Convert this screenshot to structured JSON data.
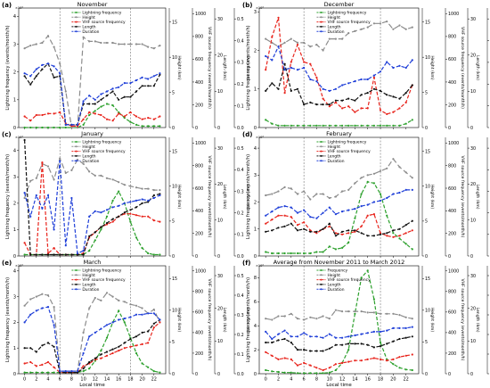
{
  "figure": {
    "shared_ylabels": [
      "Lightning frequency (events/month/h)",
      "Height (km)",
      "VHF source frequency (events/month/h)",
      "Length (km)",
      "Duration (s)"
    ],
    "y1_exponent": "×10³",
    "y1_ticks": [
      0,
      1,
      2,
      3,
      4
    ],
    "y1_ticks_f": [
      0,
      2,
      4,
      6,
      8
    ],
    "height_ticks": [
      0,
      5,
      10,
      15
    ],
    "vhf_ticks": [
      0,
      200,
      400,
      600,
      800,
      1000
    ],
    "length_ticks": [
      0,
      10,
      20,
      30
    ],
    "duration_ticks": [
      0.0,
      0.1,
      0.2,
      0.3,
      0.4,
      0.5
    ],
    "x_ticks": [
      0,
      2,
      4,
      6,
      8,
      10,
      12,
      14,
      16,
      18,
      20,
      22
    ],
    "xlabel": "Local time",
    "legend_entries": [
      "Lightning frequency",
      "Height",
      "VHF source frequency",
      "Length",
      "Duration"
    ],
    "colors": {
      "lightning": "#2ca02c",
      "height": "#8c8c8c",
      "vhf": "#e8241c",
      "length": "#111111",
      "duration": "#1f3fd8"
    }
  },
  "chart_data": [
    {
      "type": "line",
      "panel": "(a)",
      "title": "November",
      "x": [
        0,
        1,
        2,
        3,
        4,
        5,
        6,
        7,
        8,
        9,
        10,
        11,
        12,
        13,
        14,
        15,
        16,
        17,
        18,
        19,
        20,
        21,
        22,
        23
      ],
      "ylim": [
        0,
        4.3
      ],
      "series": [
        {
          "name": "Lightning frequency",
          "values": [
            0,
            0,
            0,
            0,
            0,
            0,
            0,
            0,
            0,
            0,
            0.1,
            0.45,
            0.6,
            0.75,
            0.85,
            0.8,
            0.55,
            0.35,
            0.2,
            0.1,
            0.05,
            0.05,
            0.05,
            0.05
          ]
        },
        {
          "name": "Height",
          "values": [
            2.85,
            2.95,
            3.0,
            3.05,
            3.3,
            2.9,
            2.3,
            1.3,
            0,
            0,
            3.25,
            3.1,
            3.1,
            3.05,
            3.05,
            3.05,
            3.0,
            3.0,
            3.0,
            3.0,
            3.0,
            2.9,
            2.85,
            2.95
          ]
        },
        {
          "name": "VHF source frequency",
          "values": [
            0.4,
            0.25,
            0.45,
            0.45,
            0.5,
            0.5,
            0.55,
            0.15,
            0.05,
            0.05,
            0.3,
            0.55,
            0.5,
            0.45,
            0.3,
            0.25,
            0.5,
            0.4,
            0.55,
            0.4,
            0.3,
            0.35,
            0.3,
            0.4
          ]
        },
        {
          "name": "Length",
          "values": [
            1.85,
            1.55,
            1.85,
            2.1,
            2.3,
            1.8,
            1.85,
            0.1,
            0.1,
            0.1,
            0.85,
            0.85,
            0.85,
            1.0,
            1.15,
            1.3,
            1.0,
            1.1,
            1.1,
            1.3,
            1.5,
            1.5,
            1.5,
            1.9
          ]
        },
        {
          "name": "Duration",
          "values": [
            1.95,
            1.85,
            2.1,
            2.25,
            2.3,
            2.2,
            1.95,
            0.1,
            0.1,
            0.1,
            0.95,
            1.15,
            1.0,
            1.2,
            1.3,
            1.4,
            1.45,
            1.6,
            1.6,
            1.7,
            1.8,
            1.75,
            1.85,
            1.95
          ]
        }
      ]
    },
    {
      "type": "line",
      "panel": "(b)",
      "title": "December",
      "x": [
        0,
        1,
        2,
        3,
        4,
        5,
        6,
        7,
        8,
        9,
        10,
        11,
        12,
        13,
        14,
        15,
        16,
        17,
        18,
        19,
        20,
        21,
        22,
        23
      ],
      "ylim": [
        0,
        3.1
      ],
      "series": [
        {
          "name": "Lightning frequency",
          "values": [
            0.2,
            0.1,
            0.05,
            0.05,
            0.05,
            0.05,
            0.05,
            0.05,
            0.05,
            0.05,
            0.05,
            0.05,
            0.05,
            0.05,
            0.05,
            0.05,
            0.05,
            0.05,
            0.05,
            0.05,
            0.05,
            0.05,
            0.1,
            0.2
          ]
        },
        {
          "name": "Height",
          "values": [
            2.3,
            2.2,
            2.1,
            2.2,
            2.3,
            2.2,
            2.2,
            2.1,
            2.15,
            2.0,
            2.3,
            2.3,
            2.3,
            2.45,
            2.5,
            2.55,
            2.6,
            2.7,
            2.7,
            2.75,
            2.55,
            2.65,
            2.55,
            2.6
          ]
        },
        {
          "name": "VHF source frequency",
          "values": [
            1.5,
            2.35,
            2.85,
            0.9,
            1.7,
            2.15,
            1.7,
            1.65,
            1.3,
            0.75,
            0.55,
            0.65,
            0.5,
            0.55,
            0.4,
            0.5,
            0.5,
            1.3,
            0.45,
            0.35,
            0.4,
            0.5,
            0.65,
            1.1
          ]
        },
        {
          "name": "Length",
          "values": [
            0.95,
            1.15,
            1.0,
            1.65,
            0.95,
            1.0,
            0.6,
            0.65,
            0.6,
            0.6,
            0.6,
            0.7,
            0.7,
            0.75,
            0.7,
            0.85,
            0.9,
            1.0,
            0.95,
            0.85,
            0.8,
            0.75,
            0.9,
            1.1
          ]
        },
        {
          "name": "Duration",
          "values": [
            1.85,
            1.75,
            2.1,
            1.5,
            1.55,
            1.5,
            1.55,
            1.25,
            1.2,
            1.0,
            0.95,
            1.0,
            1.1,
            1.15,
            1.2,
            1.25,
            1.25,
            1.35,
            1.45,
            1.7,
            1.55,
            1.6,
            1.55,
            1.75
          ]
        }
      ]
    },
    {
      "type": "line",
      "panel": "(c)",
      "title": "January",
      "x": [
        0,
        1,
        2,
        3,
        4,
        5,
        6,
        7,
        8,
        9,
        10,
        11,
        12,
        13,
        14,
        15,
        16,
        17,
        18,
        19,
        20,
        21,
        22,
        23
      ],
      "ylim": [
        0,
        4.5
      ],
      "series": [
        {
          "name": "Lightning frequency",
          "values": [
            0.05,
            0.05,
            0.05,
            0.05,
            0.05,
            0.05,
            0.05,
            0.05,
            0.05,
            0.05,
            0.05,
            0.2,
            0.6,
            1.0,
            1.5,
            2.1,
            2.45,
            2.0,
            1.3,
            0.7,
            0.3,
            0.1,
            0.05,
            0.05
          ]
        },
        {
          "name": "Height",
          "values": [
            2.2,
            2.85,
            2.95,
            3.5,
            3.4,
            2.9,
            3.7,
            3.15,
            3.25,
            3.65,
            3.5,
            3.2,
            3.05,
            3.05,
            2.95,
            2.9,
            2.8,
            2.7,
            2.65,
            2.6,
            2.55,
            2.55,
            2.5,
            2.5
          ]
        },
        {
          "name": "VHF source frequency",
          "values": [
            0.5,
            0.05,
            0.05,
            3.55,
            0.1,
            0.3,
            0.05,
            0.05,
            0.05,
            0.05,
            0.1,
            0.7,
            0.9,
            1.1,
            1.2,
            1.3,
            1.5,
            1.6,
            1.6,
            1.55,
            1.5,
            1.5,
            1.35,
            1.3
          ]
        },
        {
          "name": "Length",
          "values": [
            4.4,
            0.05,
            0.05,
            0.05,
            0.05,
            0.05,
            0.05,
            0.05,
            0.05,
            0.05,
            0.05,
            0.75,
            0.9,
            1.1,
            1.25,
            1.4,
            1.5,
            1.65,
            1.75,
            1.85,
            2.0,
            2.05,
            2.3,
            2.35
          ]
        },
        {
          "name": "Duration",
          "values": [
            2.4,
            1.5,
            2.3,
            1.8,
            2.3,
            1.0,
            3.6,
            0.4,
            2.2,
            0.1,
            0.2,
            1.5,
            1.7,
            1.65,
            1.75,
            1.85,
            1.9,
            2.0,
            2.05,
            2.1,
            2.15,
            2.1,
            2.2,
            2.3
          ]
        }
      ]
    },
    {
      "type": "line",
      "panel": "(d)",
      "title": "February",
      "x": [
        0,
        1,
        2,
        3,
        4,
        5,
        6,
        7,
        8,
        9,
        10,
        11,
        12,
        13,
        14,
        15,
        16,
        17,
        18,
        19,
        20,
        21,
        22,
        23
      ],
      "ylim": [
        0,
        4.4
      ],
      "series": [
        {
          "name": "Lightning frequency",
          "values": [
            0.15,
            0.1,
            0.1,
            0.1,
            0.1,
            0.1,
            0.1,
            0.1,
            0.15,
            0.15,
            0.35,
            0.25,
            0.3,
            0.5,
            1.4,
            2.3,
            2.75,
            2.7,
            2.3,
            1.5,
            0.85,
            0.65,
            0.45,
            0.25
          ]
        },
        {
          "name": "Height",
          "values": [
            2.25,
            2.3,
            2.4,
            2.55,
            2.5,
            2.3,
            2.4,
            2.1,
            2.3,
            2.3,
            2.15,
            2.2,
            2.4,
            2.45,
            2.7,
            2.9,
            3.0,
            3.05,
            3.15,
            3.25,
            3.6,
            3.3,
            3.1,
            2.9
          ]
        },
        {
          "name": "VHF source frequency",
          "values": [
            1.2,
            1.35,
            1.5,
            1.5,
            1.45,
            1.15,
            1.25,
            0.95,
            0.85,
            1.0,
            1.1,
            0.85,
            0.8,
            0.85,
            0.9,
            1.1,
            1.5,
            1.55,
            0.85,
            0.75,
            0.7,
            0.75,
            0.85,
            0.95
          ]
        },
        {
          "name": "Length",
          "values": [
            0.9,
            0.95,
            1.05,
            1.1,
            1.2,
            0.95,
            1.0,
            0.9,
            0.9,
            1.0,
            1.2,
            0.75,
            0.9,
            0.95,
            0.95,
            0.85,
            0.75,
            0.75,
            0.8,
            0.85,
            0.95,
            1.0,
            1.15,
            1.3
          ]
        },
        {
          "name": "Duration",
          "values": [
            1.5,
            1.65,
            1.8,
            1.85,
            1.8,
            1.6,
            1.7,
            1.45,
            1.4,
            1.6,
            1.8,
            1.55,
            1.65,
            1.7,
            1.75,
            1.85,
            1.9,
            2.0,
            2.05,
            2.15,
            2.3,
            2.35,
            2.45,
            2.45
          ]
        }
      ]
    },
    {
      "type": "line",
      "panel": "(e)",
      "title": "March",
      "x": [
        0,
        1,
        2,
        3,
        4,
        5,
        6,
        7,
        8,
        9,
        10,
        11,
        12,
        13,
        14,
        15,
        16,
        17,
        18,
        19,
        20,
        21,
        22,
        23
      ],
      "ylim": [
        0,
        4.2
      ],
      "series": [
        {
          "name": "Lightning frequency",
          "values": [
            0.05,
            0.05,
            0.05,
            0.05,
            0.05,
            0.05,
            0.05,
            0.05,
            0.05,
            0.05,
            0.1,
            0.2,
            0.5,
            0.9,
            1.4,
            2.0,
            2.45,
            2.0,
            1.4,
            0.8,
            0.4,
            0.25,
            0.1,
            0.05
          ]
        },
        {
          "name": "Height",
          "values": [
            2.65,
            2.9,
            3.0,
            3.1,
            3.05,
            2.6,
            0.1,
            0.1,
            0.1,
            0.1,
            1.6,
            2.55,
            2.95,
            2.85,
            3.15,
            3.0,
            2.85,
            2.8,
            2.7,
            2.65,
            2.55,
            2.35,
            2.5,
            2.0
          ]
        },
        {
          "name": "VHF source frequency",
          "values": [
            0.4,
            0.45,
            0.3,
            0.35,
            0.45,
            0.25,
            0.05,
            0.05,
            0.05,
            0.05,
            0.3,
            0.4,
            0.55,
            0.6,
            0.7,
            0.8,
            0.9,
            1.0,
            1.05,
            1.1,
            1.15,
            1.2,
            1.8,
            2.0
          ]
        },
        {
          "name": "Length",
          "values": [
            1.0,
            1.0,
            0.85,
            1.1,
            1.2,
            1.05,
            0.05,
            0.05,
            0.05,
            0.05,
            0.2,
            0.45,
            0.6,
            0.75,
            0.85,
            0.95,
            1.05,
            1.2,
            1.35,
            1.45,
            1.6,
            1.65,
            1.95,
            2.1
          ]
        },
        {
          "name": "Duration",
          "values": [
            2.0,
            2.3,
            2.45,
            2.55,
            2.6,
            1.9,
            0.1,
            0.1,
            0.1,
            0.1,
            0.8,
            1.45,
            1.6,
            1.75,
            1.9,
            2.0,
            2.1,
            2.15,
            2.2,
            2.3,
            2.3,
            2.35,
            2.35,
            2.1
          ]
        }
      ]
    },
    {
      "type": "line",
      "panel": "(f)",
      "title": "Average from November 2011 to March 2012",
      "x": [
        0,
        1,
        2,
        3,
        4,
        5,
        6,
        7,
        8,
        9,
        10,
        11,
        12,
        13,
        14,
        15,
        16,
        17,
        18,
        19,
        20,
        21,
        22,
        23
      ],
      "ylim": [
        0,
        9.0
      ],
      "series": [
        {
          "name": "Frequency",
          "values": [
            0.3,
            0.2,
            0.15,
            0.1,
            0.1,
            0.05,
            0.05,
            0.05,
            0.05,
            0.05,
            0.1,
            0.3,
            0.9,
            2.0,
            5.0,
            8.0,
            8.6,
            6.2,
            2.6,
            1.2,
            0.8,
            0.5,
            0.35,
            0.3
          ]
        },
        {
          "name": "Height",
          "values": [
            4.6,
            4.5,
            4.8,
            4.8,
            5.0,
            4.6,
            4.5,
            4.7,
            4.6,
            4.8,
            4.6,
            5.3,
            5.2,
            5.2,
            5.2,
            5.2,
            5.1,
            5.1,
            5.0,
            5.0,
            5.0,
            4.9,
            4.7,
            4.6
          ]
        },
        {
          "name": "VHF source frequency",
          "values": [
            1.8,
            1.5,
            1.2,
            1.3,
            1.2,
            0.7,
            0.9,
            0.7,
            0.5,
            0.3,
            0.5,
            0.8,
            0.9,
            1.0,
            1.1,
            1.1,
            1.2,
            1.3,
            1.2,
            1.1,
            1.2,
            1.4,
            1.5,
            1.6
          ]
        },
        {
          "name": "Length",
          "values": [
            2.6,
            2.6,
            2.8,
            2.9,
            2.6,
            2.0,
            2.0,
            1.9,
            1.9,
            1.9,
            2.1,
            2.4,
            2.4,
            2.5,
            2.5,
            2.5,
            2.4,
            2.2,
            2.3,
            2.5,
            2.7,
            2.9,
            3.0,
            3.1
          ]
        },
        {
          "name": "Duration",
          "values": [
            3.5,
            2.9,
            3.3,
            3.6,
            3.1,
            3.1,
            3.4,
            3.1,
            3.1,
            3.0,
            3.3,
            3.0,
            3.0,
            3.1,
            3.2,
            3.3,
            3.4,
            3.5,
            3.5,
            3.6,
            3.8,
            3.8,
            3.8,
            3.9
          ]
        }
      ]
    }
  ]
}
